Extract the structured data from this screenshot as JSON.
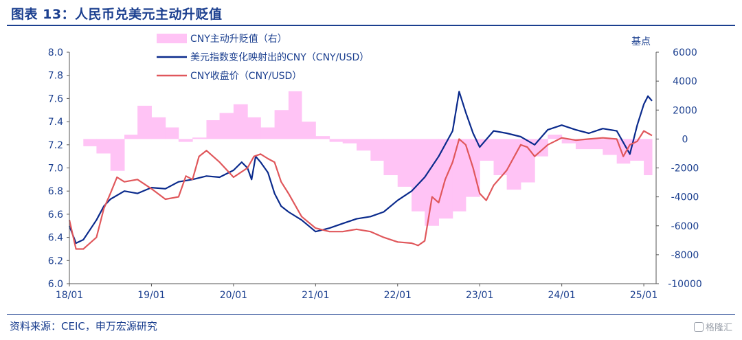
{
  "title": "图表 13：人民币兑美元主动升贬值",
  "source": "资料来源：CEIC，申万宏源研究",
  "watermark": "格隆汇",
  "chart_data": {
    "type": "line",
    "x_tick_labels": [
      "18/01",
      "19/01",
      "20/01",
      "21/01",
      "22/01",
      "23/01",
      "24/01",
      "25/01"
    ],
    "y_left": {
      "ylim": [
        6.0,
        8.0
      ],
      "ticks": [
        "6.0",
        "6.2",
        "6.4",
        "6.6",
        "6.8",
        "7.0",
        "7.2",
        "7.4",
        "7.6",
        "7.8",
        "8.0"
      ]
    },
    "y_right": {
      "label": "基点",
      "ylim": [
        -10000,
        6000
      ],
      "ticks": [
        "-10000",
        "-8000",
        "-6000",
        "-4000",
        "-2000",
        "0",
        "2000",
        "4000",
        "6000"
      ]
    },
    "legend": {
      "placement": "top-left",
      "items": [
        {
          "name": "CNY主动升贬值（右）",
          "color": "#ffc3f5",
          "kind": "area"
        },
        {
          "name": "美元指数变化映射出的CNY（CNY/USD）",
          "color": "#0a2a8c",
          "kind": "line"
        },
        {
          "name": "CNY收盘价（CNY/USD）",
          "color": "#e0575b",
          "kind": "line"
        }
      ]
    },
    "series": [
      {
        "name": "CNY主动升贬值（右）",
        "axis": "right",
        "x": [
          2018.0,
          2018.17,
          2018.33,
          2018.5,
          2018.67,
          2018.83,
          2019.0,
          2019.17,
          2019.33,
          2019.5,
          2019.67,
          2019.83,
          2020.0,
          2020.17,
          2020.33,
          2020.5,
          2020.67,
          2020.83,
          2021.0,
          2021.17,
          2021.33,
          2021.5,
          2021.67,
          2021.83,
          2022.0,
          2022.17,
          2022.33,
          2022.5,
          2022.67,
          2022.83,
          2023.0,
          2023.17,
          2023.33,
          2023.5,
          2023.67,
          2023.83,
          2024.0,
          2024.17,
          2024.33,
          2024.5,
          2024.67,
          2024.83,
          2025.0,
          2025.1
        ],
        "values": [
          0,
          -500,
          -1000,
          -2200,
          300,
          2300,
          1500,
          800,
          -200,
          100,
          1300,
          1800,
          2400,
          1500,
          800,
          2000,
          3300,
          1200,
          200,
          -200,
          -300,
          -800,
          -1500,
          -2500,
          -3300,
          -5000,
          -6000,
          -5500,
          -5000,
          -4000,
          -1500,
          -2500,
          -3500,
          -3000,
          -1200,
          300,
          -300,
          -700,
          -700,
          -1100,
          -1700,
          -1500,
          -2500,
          -3000
        ]
      },
      {
        "name": "美元指数变化映射出的CNY（CNY/USD）",
        "axis": "left",
        "x": [
          2018.0,
          2018.08,
          2018.17,
          2018.33,
          2018.42,
          2018.5,
          2018.67,
          2018.83,
          2019.0,
          2019.17,
          2019.33,
          2019.5,
          2019.67,
          2019.83,
          2020.0,
          2020.1,
          2020.17,
          2020.22,
          2020.27,
          2020.33,
          2020.42,
          2020.5,
          2020.58,
          2020.67,
          2020.83,
          2021.0,
          2021.17,
          2021.33,
          2021.5,
          2021.67,
          2021.83,
          2022.0,
          2022.17,
          2022.33,
          2022.5,
          2022.67,
          2022.75,
          2022.83,
          2022.92,
          2023.0,
          2023.17,
          2023.33,
          2023.5,
          2023.67,
          2023.83,
          2024.0,
          2024.17,
          2024.33,
          2024.5,
          2024.67,
          2024.83,
          2024.92,
          2025.0,
          2025.05,
          2025.1
        ],
        "values": [
          6.5,
          6.35,
          6.38,
          6.55,
          6.67,
          6.73,
          6.8,
          6.78,
          6.83,
          6.82,
          6.88,
          6.9,
          6.93,
          6.92,
          6.98,
          7.05,
          7.0,
          6.9,
          7.1,
          7.05,
          6.96,
          6.78,
          6.67,
          6.62,
          6.55,
          6.45,
          6.48,
          6.52,
          6.56,
          6.58,
          6.62,
          6.72,
          6.8,
          6.92,
          7.1,
          7.32,
          7.66,
          7.48,
          7.3,
          7.18,
          7.32,
          7.3,
          7.27,
          7.2,
          7.33,
          7.37,
          7.33,
          7.3,
          7.34,
          7.32,
          7.12,
          7.37,
          7.55,
          7.62,
          7.58
        ]
      },
      {
        "name": "CNY收盘价（CNY/USD）",
        "axis": "left",
        "x": [
          2018.0,
          2018.08,
          2018.17,
          2018.33,
          2018.42,
          2018.5,
          2018.58,
          2018.67,
          2018.83,
          2019.0,
          2019.17,
          2019.33,
          2019.42,
          2019.5,
          2019.58,
          2019.67,
          2019.83,
          2020.0,
          2020.17,
          2020.25,
          2020.33,
          2020.42,
          2020.5,
          2020.58,
          2020.67,
          2020.83,
          2021.0,
          2021.17,
          2021.33,
          2021.5,
          2021.67,
          2021.83,
          2022.0,
          2022.17,
          2022.25,
          2022.33,
          2022.42,
          2022.5,
          2022.58,
          2022.67,
          2022.75,
          2022.83,
          2022.92,
          2023.0,
          2023.08,
          2023.17,
          2023.33,
          2023.5,
          2023.58,
          2023.67,
          2023.83,
          2024.0,
          2024.17,
          2024.33,
          2024.5,
          2024.67,
          2024.75,
          2024.83,
          2024.92,
          2025.0,
          2025.05,
          2025.1
        ],
        "values": [
          6.55,
          6.3,
          6.3,
          6.4,
          6.65,
          6.78,
          6.92,
          6.88,
          6.9,
          6.82,
          6.73,
          6.75,
          6.93,
          6.9,
          7.1,
          7.15,
          7.05,
          6.92,
          7.0,
          7.1,
          7.12,
          7.08,
          7.05,
          6.88,
          6.78,
          6.58,
          6.48,
          6.45,
          6.45,
          6.47,
          6.45,
          6.4,
          6.36,
          6.35,
          6.33,
          6.37,
          6.75,
          6.7,
          6.9,
          7.05,
          7.25,
          7.2,
          7.0,
          6.78,
          6.72,
          6.85,
          6.98,
          7.2,
          7.18,
          7.1,
          7.2,
          7.26,
          7.24,
          7.25,
          7.26,
          7.25,
          7.1,
          7.2,
          7.23,
          7.32,
          7.3,
          7.28
        ]
      }
    ],
    "grid": false
  }
}
